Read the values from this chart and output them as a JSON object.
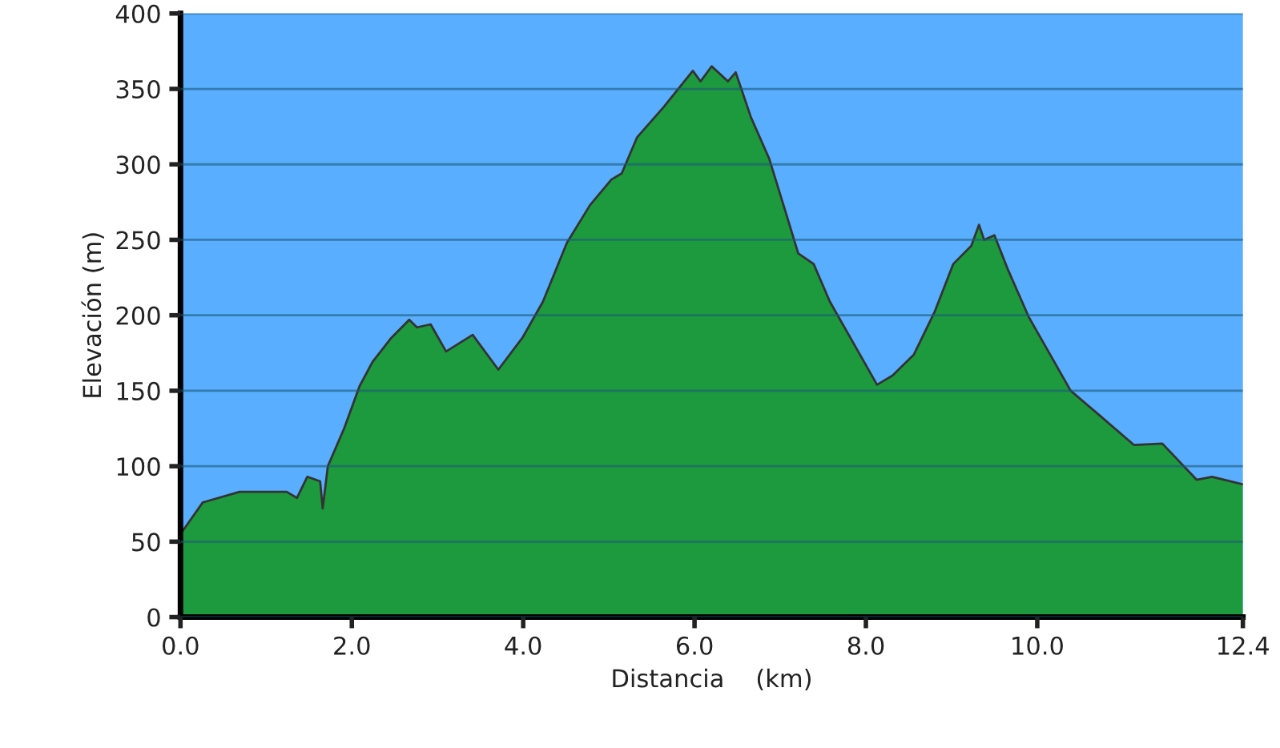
{
  "chart_data": {
    "type": "area",
    "xlabel": "Distancia    (km)",
    "ylabel": "Elevación (m)",
    "xlim": [
      0,
      12.4
    ],
    "ylim": [
      0,
      400
    ],
    "xticks": [
      {
        "value": 0,
        "label": "0.0"
      },
      {
        "value": 2,
        "label": "2.0"
      },
      {
        "value": 4,
        "label": "4.0"
      },
      {
        "value": 6,
        "label": "6.0"
      },
      {
        "value": 8,
        "label": "8.0"
      },
      {
        "value": 10,
        "label": "10.0"
      },
      {
        "value": 12.4,
        "label": "12.4"
      }
    ],
    "yticks": [
      0,
      50,
      100,
      150,
      200,
      250,
      300,
      350,
      400
    ],
    "grid": "y",
    "series": [
      {
        "color": "#1e9a3e",
        "x": [
          0,
          0.26,
          0.69,
          1.24,
          1.36,
          1.48,
          1.63,
          1.66,
          1.72,
          1.91,
          2.09,
          2.24,
          2.46,
          2.67,
          2.76,
          2.92,
          3.1,
          3.41,
          3.71,
          3.99,
          4.23,
          4.51,
          4.78,
          5.03,
          5.15,
          5.33,
          5.64,
          5.98,
          6.07,
          6.2,
          6.39,
          6.48,
          6.66,
          6.87,
          7.06,
          7.21,
          7.39,
          7.58,
          7.91,
          8.13,
          8.31,
          8.56,
          8.8,
          9.02,
          9.23,
          9.32,
          9.38,
          9.5,
          9.66,
          9.9,
          10.15,
          10.39,
          10.7,
          11.13,
          11.46,
          11.86,
          12.04,
          12.4
        ],
        "values": [
          55,
          76,
          83,
          83,
          79,
          93,
          90,
          72,
          100,
          125,
          153,
          169,
          185,
          197,
          192,
          194,
          176,
          187,
          164,
          185,
          209,
          248,
          273,
          290,
          294,
          318,
          338,
          362,
          355,
          365,
          355,
          361,
          331,
          304,
          269,
          241,
          234,
          209,
          176,
          154,
          160,
          174,
          202,
          234,
          246,
          260,
          250,
          253,
          230,
          199,
          174,
          150,
          135,
          114,
          115,
          91,
          93,
          88
        ]
      }
    ]
  }
}
